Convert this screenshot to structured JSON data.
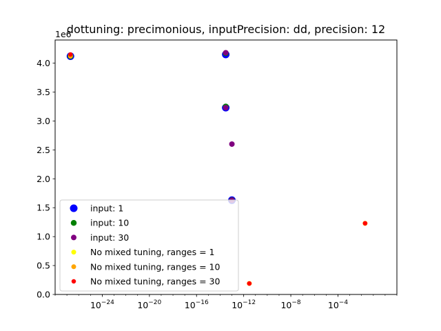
{
  "chart_data": {
    "type": "scatter",
    "title": "dottuning: precimonious, inputPrecision: dd, precision: 12",
    "xlabel": "",
    "ylabel": "",
    "xscale": "log",
    "xlim": [
      1e-28,
      10.0
    ],
    "ylim": [
      0,
      4.4
    ],
    "y_offset_label": "1e6",
    "y_scale_factor": 1000000,
    "grid": false,
    "legend_position": "lower-left",
    "x_ticks": [
      {
        "value": 1e-24,
        "base": "10",
        "exp": "−24"
      },
      {
        "value": 1e-20,
        "base": "10",
        "exp": "−20"
      },
      {
        "value": 1e-16,
        "base": "10",
        "exp": "−16"
      },
      {
        "value": 1e-12,
        "base": "10",
        "exp": "−12"
      },
      {
        "value": 1e-08,
        "base": "10",
        "exp": "−8"
      },
      {
        "value": 0.0001,
        "base": "10",
        "exp": "−4"
      }
    ],
    "y_ticks": [
      "0.0",
      "0.5",
      "1.0",
      "1.5",
      "2.0",
      "2.5",
      "3.0",
      "3.5",
      "4.0"
    ],
    "series": [
      {
        "name": "input: 1",
        "color": "#0000ff",
        "size": 9,
        "points": [
          [
            2e-27,
            4.12
          ],
          [
            3e-14,
            4.15
          ],
          [
            3e-14,
            3.23
          ],
          [
            1e-13,
            1.63
          ]
        ]
      },
      {
        "name": "input: 10",
        "color": "#008000",
        "size": 6.5,
        "points": [
          [
            2e-27,
            4.12
          ],
          [
            3e-14,
            4.17
          ],
          [
            3e-14,
            3.25
          ],
          [
            1e-13,
            1.63
          ]
        ]
      },
      {
        "name": "input: 30",
        "color": "#800080",
        "size": 6,
        "points": [
          [
            3e-14,
            4.18
          ],
          [
            3e-14,
            3.23
          ],
          [
            1e-13,
            2.6
          ],
          [
            1e-13,
            1.63
          ]
        ]
      },
      {
        "name": "No mixed tuning, ranges = 1",
        "color": "#ffff00",
        "size": 5,
        "points": [
          [
            2e-27,
            4.14
          ],
          [
            3e-12,
            0.19
          ],
          [
            0.02,
            1.23
          ]
        ]
      },
      {
        "name": "No mixed tuning, ranges = 10",
        "color": "#ffa500",
        "size": 5,
        "points": [
          [
            2e-27,
            4.12
          ],
          [
            3e-12,
            0.19
          ],
          [
            0.02,
            1.23
          ]
        ]
      },
      {
        "name": "No mixed tuning, ranges = 30",
        "color": "#ff0000",
        "size": 4.5,
        "points": [
          [
            2e-27,
            4.15
          ],
          [
            3e-12,
            0.19
          ],
          [
            0.02,
            1.23
          ]
        ]
      }
    ]
  }
}
